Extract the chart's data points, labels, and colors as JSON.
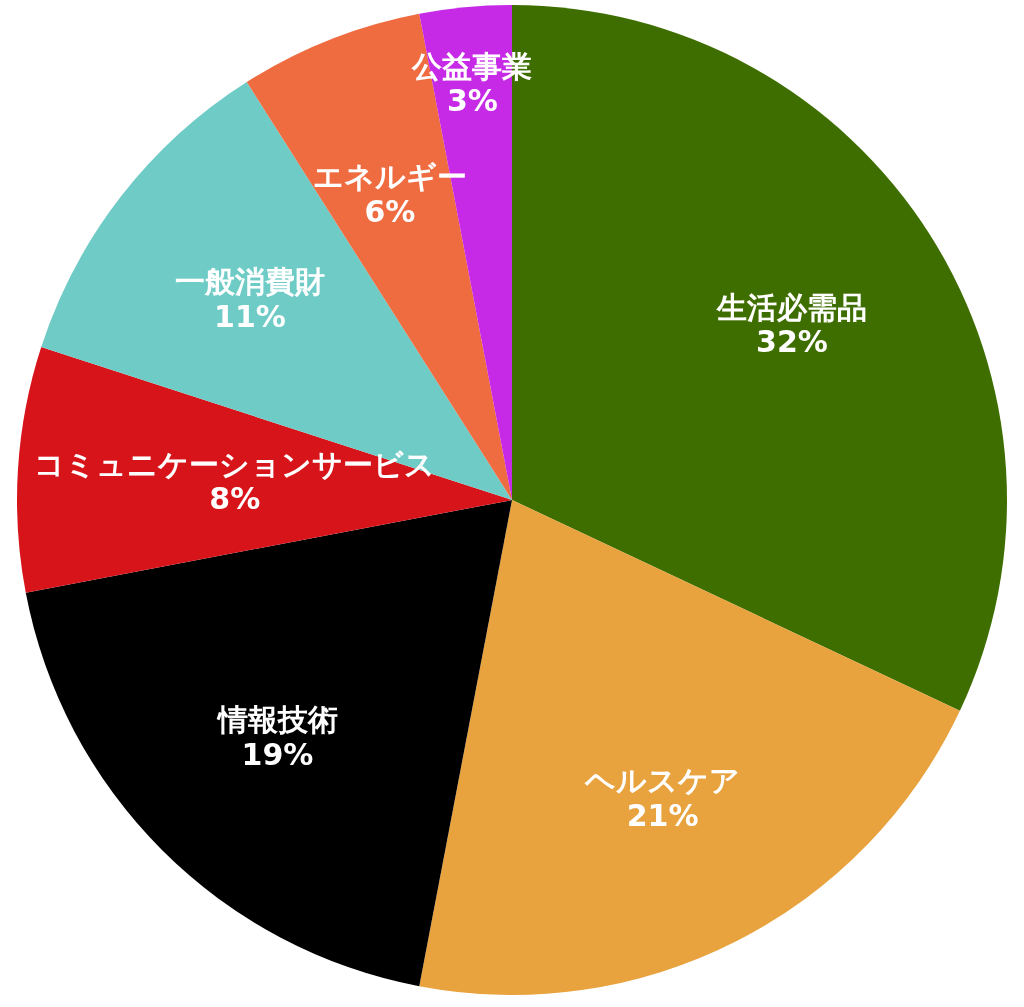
{
  "chart_data": {
    "type": "pie",
    "categories": [
      "生活必需品",
      "ヘルスケア",
      "情報技術",
      "コミュニケーションサービス",
      "一般消費財",
      "エネルギー",
      "公益事業"
    ],
    "values": [
      32,
      21,
      19,
      8,
      11,
      6,
      3
    ],
    "colors": [
      "#3f6e00",
      "#e8a23e",
      "#000000",
      "#d7141a",
      "#6fcbc6",
      "#ef6b40",
      "#c62ae6"
    ],
    "value_labels": [
      "32%",
      "21%",
      "19%",
      "8%",
      "11%",
      "6%",
      "3%"
    ]
  }
}
